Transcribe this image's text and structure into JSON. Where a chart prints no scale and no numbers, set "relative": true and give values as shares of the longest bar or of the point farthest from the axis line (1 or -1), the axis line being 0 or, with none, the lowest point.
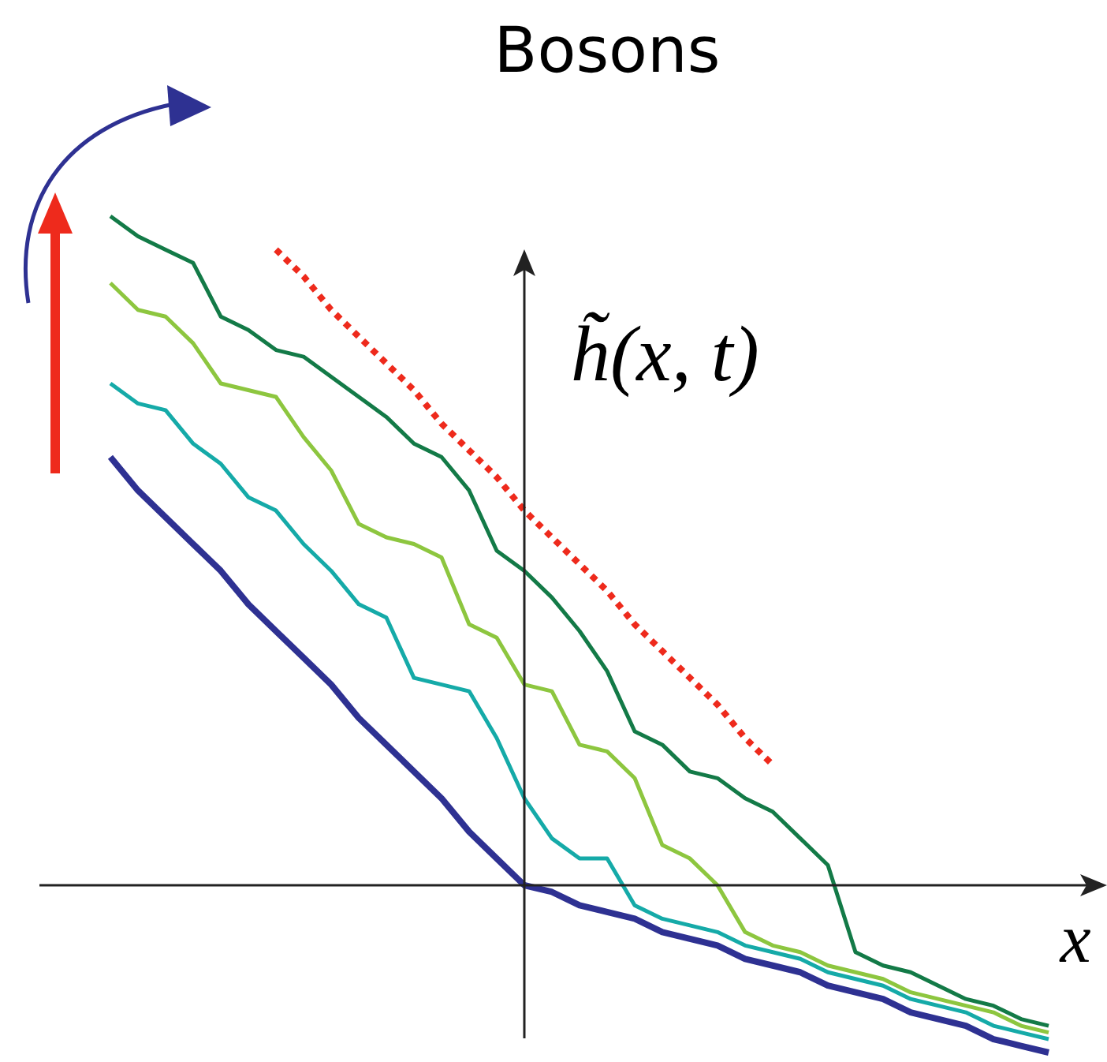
{
  "chart_data": {
    "type": "line",
    "title": "Bosons",
    "xlabel": "x",
    "ylabel": "h̃(x, t)",
    "relative": true,
    "marker": "none",
    "categories": [
      null,
      null,
      null,
      null,
      null,
      null,
      null,
      null,
      null,
      null,
      null,
      null,
      null,
      null,
      null,
      null,
      null,
      null,
      null,
      null,
      null,
      null,
      null,
      null,
      null,
      null,
      null,
      null,
      null,
      null,
      null,
      null,
      null,
      null,
      null
    ],
    "series": [
      {
        "color": "#2e3192",
        "values": [
          0.64,
          0.59,
          0.55,
          0.51,
          0.47,
          0.42,
          0.38,
          0.34,
          0.3,
          0.25,
          0.21,
          0.17,
          0.13,
          0.08,
          0.04,
          0.0,
          -0.01,
          -0.03,
          -0.04,
          -0.05,
          -0.07,
          -0.08,
          -0.09,
          -0.11,
          -0.12,
          -0.13,
          -0.15,
          -0.16,
          -0.17,
          -0.19,
          -0.2,
          -0.21,
          -0.23,
          -0.24,
          -0.25
        ]
      },
      {
        "color": "#15aaa8",
        "values": [
          0.75,
          0.72,
          0.71,
          0.66,
          0.63,
          0.58,
          0.56,
          0.51,
          0.47,
          0.42,
          0.4,
          0.31,
          0.3,
          0.29,
          0.22,
          0.13,
          0.07,
          0.04,
          0.04,
          -0.03,
          -0.05,
          -0.06,
          -0.07,
          -0.09,
          -0.1,
          -0.11,
          -0.13,
          -0.14,
          -0.15,
          -0.17,
          -0.18,
          -0.19,
          -0.21,
          -0.22,
          -0.23
        ]
      },
      {
        "color": "#8dc63f",
        "values": [
          0.9,
          0.86,
          0.85,
          0.81,
          0.75,
          0.74,
          0.73,
          0.67,
          0.62,
          0.54,
          0.52,
          0.51,
          0.49,
          0.39,
          0.37,
          0.3,
          0.29,
          0.21,
          0.2,
          0.16,
          0.06,
          0.04,
          0.0,
          -0.07,
          -0.09,
          -0.1,
          -0.12,
          -0.13,
          -0.14,
          -0.16,
          -0.17,
          -0.18,
          -0.19,
          -0.21,
          -0.22
        ]
      },
      {
        "color": "#137a47",
        "values": [
          1.0,
          0.97,
          0.95,
          0.93,
          0.85,
          0.83,
          0.8,
          0.79,
          0.76,
          0.73,
          0.7,
          0.66,
          0.64,
          0.59,
          0.5,
          0.47,
          0.43,
          0.38,
          0.32,
          0.23,
          0.21,
          0.17,
          0.16,
          0.13,
          0.11,
          0.07,
          0.03,
          -0.1,
          -0.12,
          -0.13,
          -0.15,
          -0.17,
          -0.18,
          -0.2,
          -0.21
        ]
      },
      {
        "type": "line",
        "line_style": "dotted",
        "color": "#ee2a1c",
        "values": [
          null,
          null,
          null,
          null,
          null,
          null,
          0.95,
          0.91,
          0.86,
          0.82,
          0.78,
          0.74,
          0.69,
          0.65,
          0.61,
          0.56,
          0.52,
          0.48,
          0.44,
          0.39,
          0.35,
          0.31,
          0.27,
          0.22,
          0.18,
          null,
          null,
          null,
          null,
          null,
          null,
          null,
          null,
          null,
          null
        ]
      }
    ]
  }
}
